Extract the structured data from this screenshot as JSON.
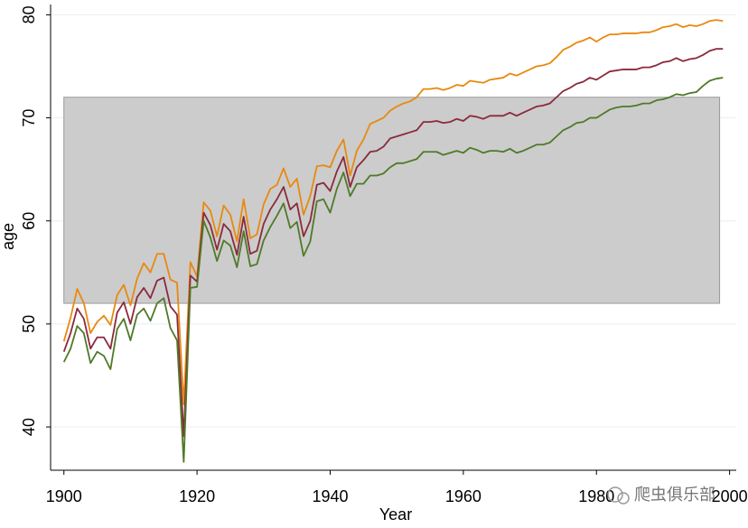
{
  "chart_data": {
    "type": "line",
    "x_label": "Year",
    "y_label": "age",
    "watermark": "爬虫俱乐部",
    "xlim": [
      1898,
      2001
    ],
    "ylim": [
      35.8,
      81
    ],
    "xticks": [
      1900,
      1920,
      1940,
      1960,
      1980,
      2000
    ],
    "yticks": [
      40,
      50,
      60,
      70,
      80
    ],
    "grid": true,
    "shaded_region": {
      "x": [
        1900,
        1998.5
      ],
      "y": [
        52,
        72
      ],
      "color": "#cccccc",
      "edge": "#999999"
    },
    "x": [
      1900,
      1901,
      1902,
      1903,
      1904,
      1905,
      1906,
      1907,
      1908,
      1909,
      1910,
      1911,
      1912,
      1913,
      1914,
      1915,
      1916,
      1917,
      1918,
      1919,
      1920,
      1921,
      1922,
      1923,
      1924,
      1925,
      1926,
      1927,
      1928,
      1929,
      1930,
      1931,
      1932,
      1933,
      1934,
      1935,
      1936,
      1937,
      1938,
      1939,
      1940,
      1941,
      1942,
      1943,
      1944,
      1945,
      1946,
      1947,
      1948,
      1949,
      1950,
      1951,
      1952,
      1953,
      1954,
      1955,
      1956,
      1957,
      1958,
      1959,
      1960,
      1961,
      1962,
      1963,
      1964,
      1965,
      1966,
      1967,
      1968,
      1969,
      1970,
      1971,
      1972,
      1973,
      1974,
      1975,
      1976,
      1977,
      1978,
      1979,
      1980,
      1981,
      1982,
      1983,
      1984,
      1985,
      1986,
      1987,
      1988,
      1989,
      1990,
      1991,
      1992,
      1993,
      1994,
      1995,
      1996,
      1997,
      1998,
      1999
    ],
    "series": [
      {
        "color": "#e8890f",
        "values": [
          48.3,
          50.6,
          53.4,
          52.0,
          49.1,
          50.2,
          50.8,
          49.9,
          52.8,
          53.8,
          51.8,
          54.4,
          55.9,
          55.0,
          56.8,
          56.8,
          54.3,
          54.0,
          42.2,
          56.0,
          54.6,
          61.8,
          61.0,
          58.5,
          61.5,
          60.6,
          58.0,
          62.1,
          58.3,
          58.7,
          61.6,
          63.1,
          63.5,
          65.1,
          63.3,
          64.1,
          60.6,
          62.4,
          65.3,
          65.4,
          65.2,
          66.8,
          67.9,
          64.4,
          66.8,
          67.9,
          69.4,
          69.7,
          70.0,
          70.7,
          71.1,
          71.4,
          71.6,
          72.0,
          72.8,
          72.8,
          72.9,
          72.7,
          72.9,
          73.2,
          73.1,
          73.6,
          73.5,
          73.4,
          73.7,
          73.8,
          73.9,
          74.3,
          74.1,
          74.4,
          74.7,
          75.0,
          75.1,
          75.3,
          75.9,
          76.6,
          76.9,
          77.3,
          77.5,
          77.8,
          77.4,
          77.8,
          78.1,
          78.1,
          78.2,
          78.2,
          78.2,
          78.3,
          78.3,
          78.5,
          78.8,
          78.9,
          79.1,
          78.8,
          79.0,
          78.9,
          79.1,
          79.4,
          79.5,
          79.4
        ]
      },
      {
        "color": "#8b2a3c",
        "values": [
          47.3,
          49.1,
          51.5,
          50.5,
          47.6,
          48.7,
          48.7,
          47.6,
          51.1,
          52.1,
          50.0,
          52.6,
          53.5,
          52.5,
          54.2,
          54.5,
          51.7,
          50.9,
          39.1,
          54.7,
          54.1,
          60.8,
          59.6,
          57.2,
          59.7,
          59.0,
          56.7,
          60.4,
          56.8,
          57.1,
          59.7,
          61.1,
          62.1,
          63.3,
          61.1,
          61.7,
          58.5,
          60.0,
          63.5,
          63.7,
          62.9,
          64.8,
          66.2,
          63.3,
          65.2,
          65.9,
          66.7,
          66.8,
          67.2,
          68.0,
          68.2,
          68.4,
          68.6,
          68.8,
          69.6,
          69.6,
          69.7,
          69.5,
          69.6,
          69.9,
          69.7,
          70.2,
          70.1,
          69.9,
          70.2,
          70.2,
          70.2,
          70.5,
          70.2,
          70.5,
          70.8,
          71.1,
          71.2,
          71.4,
          72.0,
          72.6,
          72.9,
          73.3,
          73.5,
          73.9,
          73.7,
          74.1,
          74.5,
          74.6,
          74.7,
          74.7,
          74.7,
          74.9,
          74.9,
          75.1,
          75.4,
          75.5,
          75.8,
          75.5,
          75.7,
          75.8,
          76.1,
          76.5,
          76.7,
          76.7
        ]
      },
      {
        "color": "#4f7a28",
        "values": [
          46.3,
          47.6,
          49.8,
          49.1,
          46.2,
          47.3,
          46.9,
          45.6,
          49.5,
          50.5,
          48.4,
          50.9,
          51.5,
          50.3,
          52.0,
          52.5,
          49.6,
          48.4,
          36.6,
          53.5,
          53.6,
          60.0,
          58.4,
          56.1,
          58.1,
          57.6,
          55.5,
          59.0,
          55.6,
          55.8,
          58.1,
          59.4,
          60.5,
          61.7,
          59.3,
          59.9,
          56.6,
          58.0,
          61.9,
          62.1,
          60.8,
          63.1,
          64.7,
          62.4,
          63.6,
          63.6,
          64.4,
          64.4,
          64.6,
          65.2,
          65.6,
          65.6,
          65.8,
          66.0,
          66.7,
          66.7,
          66.7,
          66.4,
          66.6,
          66.8,
          66.6,
          67.1,
          66.9,
          66.6,
          66.8,
          66.8,
          66.7,
          67.0,
          66.6,
          66.8,
          67.1,
          67.4,
          67.4,
          67.6,
          68.2,
          68.8,
          69.1,
          69.5,
          69.6,
          70.0,
          70.0,
          70.4,
          70.8,
          71.0,
          71.1,
          71.1,
          71.2,
          71.4,
          71.4,
          71.7,
          71.8,
          72.0,
          72.3,
          72.2,
          72.4,
          72.5,
          73.1,
          73.6,
          73.8,
          73.9
        ]
      }
    ]
  }
}
